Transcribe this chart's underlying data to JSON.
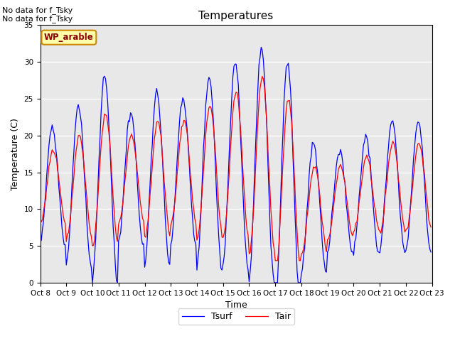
{
  "title": "Temperatures",
  "xlabel": "Time",
  "ylabel": "Temperature (C)",
  "ylim": [
    0,
    35
  ],
  "annotation1": "No data for f_Tsky",
  "annotation2": "No data for f_Tsky",
  "wp_label": "WP_arable",
  "xtick_labels": [
    "Oct 8",
    "Oct 9",
    "Oct 10",
    "Oct 11",
    "Oct 12",
    "Oct 13",
    "Oct 14",
    "Oct 15",
    "Oct 16",
    "Oct 17",
    "Oct 18",
    "Oct 19",
    "Oct 20",
    "Oct 21",
    "Oct 22",
    "Oct 23"
  ],
  "tair_color": "#ff0000",
  "tsurf_color": "#0000ff",
  "plot_bg_color": "#e8e8e8",
  "fig_bg_color": "#ffffff",
  "legend_tair": "Tair",
  "legend_tsurf": "Tsurf",
  "font_size": 9,
  "title_font_size": 11,
  "n_days": 15,
  "daily_mean": [
    13,
    13,
    14,
    14,
    14,
    15,
    15,
    16,
    16,
    13,
    10,
    11,
    12,
    13,
    13
  ],
  "daily_amp_air": [
    5,
    7,
    9,
    6,
    8,
    7,
    9,
    10,
    12,
    12,
    6,
    5,
    5,
    6,
    6
  ],
  "daily_amp_surf": [
    8,
    11,
    14,
    9,
    12,
    10,
    13,
    14,
    16,
    17,
    9,
    7,
    8,
    9,
    9
  ]
}
